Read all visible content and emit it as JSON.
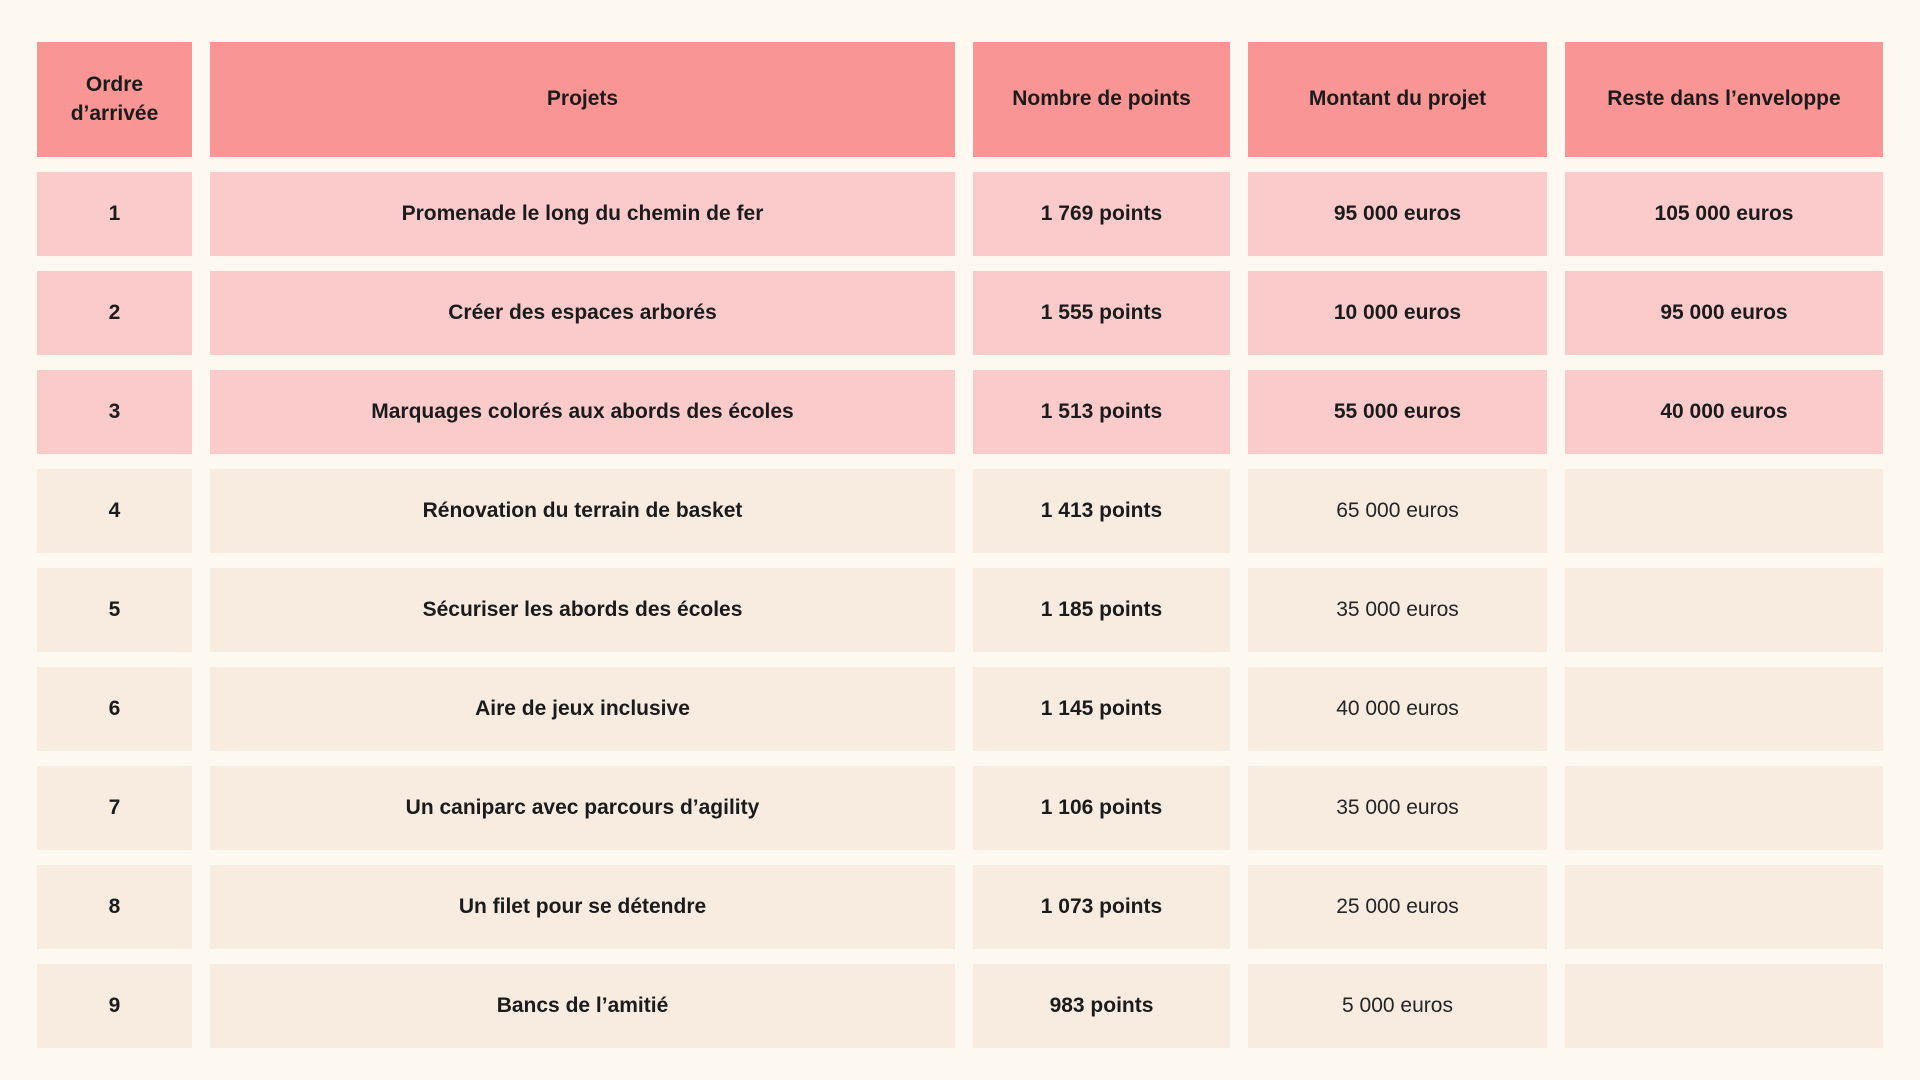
{
  "colors": {
    "page_background": "#FDF9F1",
    "header_background": "#F99595",
    "funded_row_background": "#FBCBCB",
    "unfunded_row_background": "#F8ECE1",
    "text": "#1B1B1B"
  },
  "chart_data": {
    "type": "table",
    "columns": [
      "Ordre d’arrivée",
      "Projets",
      "Nombre de points",
      "Montant du projet",
      "Reste dans l’enveloppe"
    ],
    "rows": [
      {
        "order": "1",
        "project": "Promenade le long du chemin de fer",
        "points": "1 769 points",
        "amount": "95 000 euros",
        "remaining": "105 000 euros",
        "highlighted": true,
        "amount_bold": true
      },
      {
        "order": "2",
        "project": "Créer des espaces arborés",
        "points": "1 555 points",
        "amount": "10 000 euros",
        "remaining": "95 000 euros",
        "highlighted": true,
        "amount_bold": true
      },
      {
        "order": "3",
        "project": "Marquages colorés aux abords des écoles",
        "points": "1 513 points",
        "amount": "55 000 euros",
        "remaining": "40 000 euros",
        "highlighted": true,
        "amount_bold": true
      },
      {
        "order": "4",
        "project": "Rénovation du terrain de basket",
        "points": "1 413 points",
        "amount": "65 000 euros",
        "remaining": "",
        "highlighted": false,
        "amount_bold": false
      },
      {
        "order": "5",
        "project": "Sécuriser les abords des écoles",
        "points": "1 185 points",
        "amount": "35 000 euros",
        "remaining": "",
        "highlighted": false,
        "amount_bold": false
      },
      {
        "order": "6",
        "project": "Aire de jeux inclusive",
        "points": "1 145 points",
        "amount": "40 000 euros",
        "remaining": "",
        "highlighted": false,
        "amount_bold": false
      },
      {
        "order": "7",
        "project": "Un caniparc avec parcours d’agility",
        "points": "1 106 points",
        "amount": "35 000 euros",
        "remaining": "",
        "highlighted": false,
        "amount_bold": false
      },
      {
        "order": "8",
        "project": "Un filet pour se détendre",
        "points": "1 073 points",
        "amount": "25 000 euros",
        "remaining": "",
        "highlighted": false,
        "amount_bold": false
      },
      {
        "order": "9",
        "project": "Bancs de l’amitié",
        "points": "983 points",
        "amount": "5 000 euros",
        "remaining": "",
        "highlighted": false,
        "amount_bold": false
      }
    ]
  }
}
